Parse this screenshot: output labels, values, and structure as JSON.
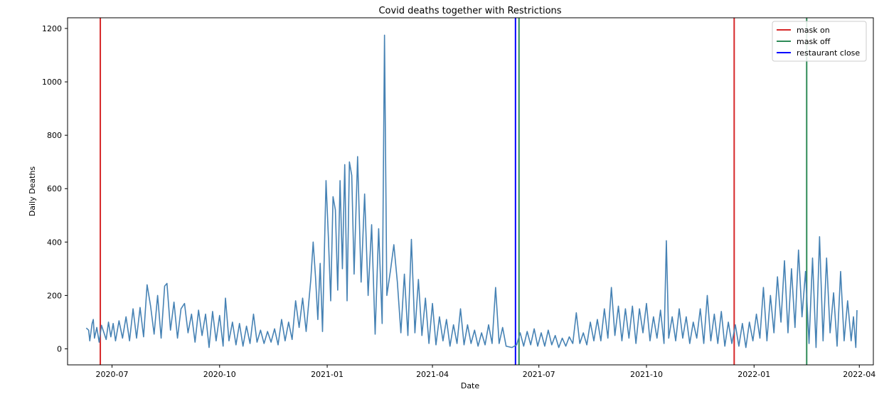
{
  "chart_data": {
    "type": "line",
    "title": "Covid deaths together with Restrictions",
    "xlabel": "Date",
    "ylabel": "Daily Deaths",
    "xlim": [
      "2020-05-24",
      "2022-04-13"
    ],
    "ylim": [
      -60,
      1240
    ],
    "x_ticks": [
      "2020-07-01",
      "2020-10-01",
      "2021-01-01",
      "2021-04-01",
      "2021-07-01",
      "2021-10-01",
      "2022-01-01",
      "2022-04-01"
    ],
    "x_tick_labels": [
      "2020-07",
      "2020-10",
      "2021-01",
      "2021-04",
      "2021-07",
      "2021-10",
      "2022-01",
      "2022-04"
    ],
    "y_ticks": [
      0,
      200,
      400,
      600,
      800,
      1000,
      1200
    ],
    "y_tick_labels": [
      "0",
      "200",
      "400",
      "600",
      "800",
      "1000",
      "1200"
    ],
    "grid": false,
    "legend_position": "top-right",
    "series": [
      {
        "color": "#4682b4",
        "values": [
          [
            "2020-06-09",
            78
          ],
          [
            "2020-06-11",
            70
          ],
          [
            "2020-06-12",
            30
          ],
          [
            "2020-06-14",
            95
          ],
          [
            "2020-06-15",
            110
          ],
          [
            "2020-06-16",
            40
          ],
          [
            "2020-06-18",
            80
          ],
          [
            "2020-06-20",
            25
          ],
          [
            "2020-06-22",
            88
          ],
          [
            "2020-06-24",
            62
          ],
          [
            "2020-06-26",
            35
          ],
          [
            "2020-06-28",
            100
          ],
          [
            "2020-06-30",
            45
          ],
          [
            "2020-07-02",
            95
          ],
          [
            "2020-07-04",
            30
          ],
          [
            "2020-07-07",
            105
          ],
          [
            "2020-07-10",
            40
          ],
          [
            "2020-07-13",
            120
          ],
          [
            "2020-07-16",
            30
          ],
          [
            "2020-07-19",
            150
          ],
          [
            "2020-07-22",
            40
          ],
          [
            "2020-07-25",
            155
          ],
          [
            "2020-07-28",
            45
          ],
          [
            "2020-07-31",
            240
          ],
          [
            "2020-08-03",
            160
          ],
          [
            "2020-08-06",
            55
          ],
          [
            "2020-08-09",
            200
          ],
          [
            "2020-08-12",
            40
          ],
          [
            "2020-08-15",
            235
          ],
          [
            "2020-08-17",
            245
          ],
          [
            "2020-08-20",
            70
          ],
          [
            "2020-08-23",
            175
          ],
          [
            "2020-08-26",
            40
          ],
          [
            "2020-08-29",
            150
          ],
          [
            "2020-09-01",
            170
          ],
          [
            "2020-09-04",
            60
          ],
          [
            "2020-09-07",
            130
          ],
          [
            "2020-09-10",
            25
          ],
          [
            "2020-09-13",
            145
          ],
          [
            "2020-09-16",
            50
          ],
          [
            "2020-09-19",
            130
          ],
          [
            "2020-09-22",
            5
          ],
          [
            "2020-09-25",
            140
          ],
          [
            "2020-09-28",
            30
          ],
          [
            "2020-10-01",
            125
          ],
          [
            "2020-10-04",
            10
          ],
          [
            "2020-10-06",
            190
          ],
          [
            "2020-10-09",
            30
          ],
          [
            "2020-10-12",
            100
          ],
          [
            "2020-10-15",
            15
          ],
          [
            "2020-10-18",
            95
          ],
          [
            "2020-10-21",
            10
          ],
          [
            "2020-10-24",
            85
          ],
          [
            "2020-10-27",
            20
          ],
          [
            "2020-10-30",
            130
          ],
          [
            "2020-11-02",
            25
          ],
          [
            "2020-11-05",
            70
          ],
          [
            "2020-11-08",
            20
          ],
          [
            "2020-11-11",
            65
          ],
          [
            "2020-11-14",
            25
          ],
          [
            "2020-11-17",
            75
          ],
          [
            "2020-11-20",
            15
          ],
          [
            "2020-11-23",
            110
          ],
          [
            "2020-11-26",
            30
          ],
          [
            "2020-11-29",
            100
          ],
          [
            "2020-12-02",
            35
          ],
          [
            "2020-12-05",
            180
          ],
          [
            "2020-12-08",
            80
          ],
          [
            "2020-12-11",
            190
          ],
          [
            "2020-12-14",
            65
          ],
          [
            "2020-12-18",
            260
          ],
          [
            "2020-12-20",
            400
          ],
          [
            "2020-12-22",
            270
          ],
          [
            "2020-12-24",
            110
          ],
          [
            "2020-12-26",
            320
          ],
          [
            "2020-12-28",
            65
          ],
          [
            "2020-12-31",
            630
          ],
          [
            "2021-01-02",
            420
          ],
          [
            "2021-01-04",
            180
          ],
          [
            "2021-01-06",
            570
          ],
          [
            "2021-01-08",
            520
          ],
          [
            "2021-01-10",
            220
          ],
          [
            "2021-01-12",
            630
          ],
          [
            "2021-01-14",
            300
          ],
          [
            "2021-01-16",
            690
          ],
          [
            "2021-01-18",
            180
          ],
          [
            "2021-01-20",
            700
          ],
          [
            "2021-01-22",
            650
          ],
          [
            "2021-01-24",
            280
          ],
          [
            "2021-01-27",
            720
          ],
          [
            "2021-01-30",
            250
          ],
          [
            "2021-02-02",
            580
          ],
          [
            "2021-02-05",
            200
          ],
          [
            "2021-02-08",
            465
          ],
          [
            "2021-02-11",
            55
          ],
          [
            "2021-02-14",
            450
          ],
          [
            "2021-02-17",
            95
          ],
          [
            "2021-02-19",
            1175
          ],
          [
            "2021-02-21",
            200
          ],
          [
            "2021-02-24",
            290
          ],
          [
            "2021-02-27",
            390
          ],
          [
            "2021-03-02",
            250
          ],
          [
            "2021-03-05",
            60
          ],
          [
            "2021-03-08",
            280
          ],
          [
            "2021-03-11",
            50
          ],
          [
            "2021-03-14",
            410
          ],
          [
            "2021-03-17",
            60
          ],
          [
            "2021-03-20",
            260
          ],
          [
            "2021-03-23",
            50
          ],
          [
            "2021-03-26",
            190
          ],
          [
            "2021-03-29",
            20
          ],
          [
            "2021-04-01",
            170
          ],
          [
            "2021-04-04",
            15
          ],
          [
            "2021-04-07",
            120
          ],
          [
            "2021-04-10",
            30
          ],
          [
            "2021-04-13",
            110
          ],
          [
            "2021-04-16",
            10
          ],
          [
            "2021-04-19",
            90
          ],
          [
            "2021-04-22",
            20
          ],
          [
            "2021-04-25",
            150
          ],
          [
            "2021-04-28",
            15
          ],
          [
            "2021-05-01",
            90
          ],
          [
            "2021-05-04",
            20
          ],
          [
            "2021-05-07",
            70
          ],
          [
            "2021-05-10",
            10
          ],
          [
            "2021-05-13",
            60
          ],
          [
            "2021-05-16",
            15
          ],
          [
            "2021-05-19",
            90
          ],
          [
            "2021-05-22",
            20
          ],
          [
            "2021-05-25",
            230
          ],
          [
            "2021-05-28",
            20
          ],
          [
            "2021-05-31",
            80
          ],
          [
            "2021-06-03",
            10
          ],
          [
            "2021-06-08",
            5
          ],
          [
            "2021-06-12",
            15
          ],
          [
            "2021-06-15",
            60
          ],
          [
            "2021-06-18",
            10
          ],
          [
            "2021-06-21",
            65
          ],
          [
            "2021-06-24",
            15
          ],
          [
            "2021-06-27",
            75
          ],
          [
            "2021-06-30",
            10
          ],
          [
            "2021-07-03",
            60
          ],
          [
            "2021-07-06",
            10
          ],
          [
            "2021-07-09",
            70
          ],
          [
            "2021-07-12",
            15
          ],
          [
            "2021-07-15",
            50
          ],
          [
            "2021-07-18",
            5
          ],
          [
            "2021-07-21",
            40
          ],
          [
            "2021-07-24",
            10
          ],
          [
            "2021-07-27",
            45
          ],
          [
            "2021-07-30",
            20
          ],
          [
            "2021-08-02",
            135
          ],
          [
            "2021-08-05",
            20
          ],
          [
            "2021-08-08",
            60
          ],
          [
            "2021-08-11",
            15
          ],
          [
            "2021-08-14",
            100
          ],
          [
            "2021-08-17",
            30
          ],
          [
            "2021-08-20",
            110
          ],
          [
            "2021-08-23",
            30
          ],
          [
            "2021-08-26",
            150
          ],
          [
            "2021-08-29",
            40
          ],
          [
            "2021-09-01",
            230
          ],
          [
            "2021-09-04",
            50
          ],
          [
            "2021-09-07",
            160
          ],
          [
            "2021-09-10",
            30
          ],
          [
            "2021-09-13",
            150
          ],
          [
            "2021-09-16",
            40
          ],
          [
            "2021-09-19",
            160
          ],
          [
            "2021-09-22",
            20
          ],
          [
            "2021-09-25",
            150
          ],
          [
            "2021-09-28",
            60
          ],
          [
            "2021-10-01",
            170
          ],
          [
            "2021-10-04",
            30
          ],
          [
            "2021-10-07",
            120
          ],
          [
            "2021-10-10",
            40
          ],
          [
            "2021-10-13",
            145
          ],
          [
            "2021-10-16",
            20
          ],
          [
            "2021-10-18",
            405
          ],
          [
            "2021-10-20",
            40
          ],
          [
            "2021-10-23",
            120
          ],
          [
            "2021-10-26",
            30
          ],
          [
            "2021-10-29",
            150
          ],
          [
            "2021-11-01",
            40
          ],
          [
            "2021-11-04",
            120
          ],
          [
            "2021-11-07",
            20
          ],
          [
            "2021-11-10",
            100
          ],
          [
            "2021-11-13",
            40
          ],
          [
            "2021-11-16",
            150
          ],
          [
            "2021-11-19",
            20
          ],
          [
            "2021-11-22",
            200
          ],
          [
            "2021-11-25",
            30
          ],
          [
            "2021-11-28",
            130
          ],
          [
            "2021-12-01",
            20
          ],
          [
            "2021-12-04",
            140
          ],
          [
            "2021-12-07",
            10
          ],
          [
            "2021-12-10",
            100
          ],
          [
            "2021-12-13",
            20
          ],
          [
            "2021-12-16",
            90
          ],
          [
            "2021-12-19",
            10
          ],
          [
            "2021-12-22",
            95
          ],
          [
            "2021-12-25",
            5
          ],
          [
            "2021-12-28",
            100
          ],
          [
            "2021-12-31",
            30
          ],
          [
            "2022-01-03",
            130
          ],
          [
            "2022-01-06",
            40
          ],
          [
            "2022-01-09",
            230
          ],
          [
            "2022-01-12",
            30
          ],
          [
            "2022-01-15",
            200
          ],
          [
            "2022-01-18",
            60
          ],
          [
            "2022-01-21",
            270
          ],
          [
            "2022-01-24",
            100
          ],
          [
            "2022-01-27",
            330
          ],
          [
            "2022-01-30",
            60
          ],
          [
            "2022-02-02",
            300
          ],
          [
            "2022-02-05",
            80
          ],
          [
            "2022-02-08",
            370
          ],
          [
            "2022-02-11",
            120
          ],
          [
            "2022-02-14",
            290
          ],
          [
            "2022-02-17",
            20
          ],
          [
            "2022-02-20",
            340
          ],
          [
            "2022-02-23",
            5
          ],
          [
            "2022-02-26",
            420
          ],
          [
            "2022-03-01",
            30
          ],
          [
            "2022-03-04",
            340
          ],
          [
            "2022-03-07",
            60
          ],
          [
            "2022-03-10",
            210
          ],
          [
            "2022-03-13",
            10
          ],
          [
            "2022-03-16",
            290
          ],
          [
            "2022-03-19",
            30
          ],
          [
            "2022-03-22",
            180
          ],
          [
            "2022-03-25",
            30
          ],
          [
            "2022-03-27",
            120
          ],
          [
            "2022-03-29",
            5
          ],
          [
            "2022-03-30",
            145
          ]
        ]
      }
    ],
    "vlines": [
      {
        "date": "2020-06-21",
        "color": "#d62728"
      },
      {
        "date": "2021-06-11",
        "color": "#0000ff"
      },
      {
        "date": "2021-06-14",
        "color": "#2e8b57"
      },
      {
        "date": "2021-12-15",
        "color": "#d62728"
      },
      {
        "date": "2022-02-15",
        "color": "#2e8b57"
      }
    ],
    "legend": [
      {
        "label": "mask on",
        "color": "#d62728"
      },
      {
        "label": "mask off",
        "color": "#2e8b57"
      },
      {
        "label": "restaurant close",
        "color": "#0000ff"
      }
    ]
  }
}
